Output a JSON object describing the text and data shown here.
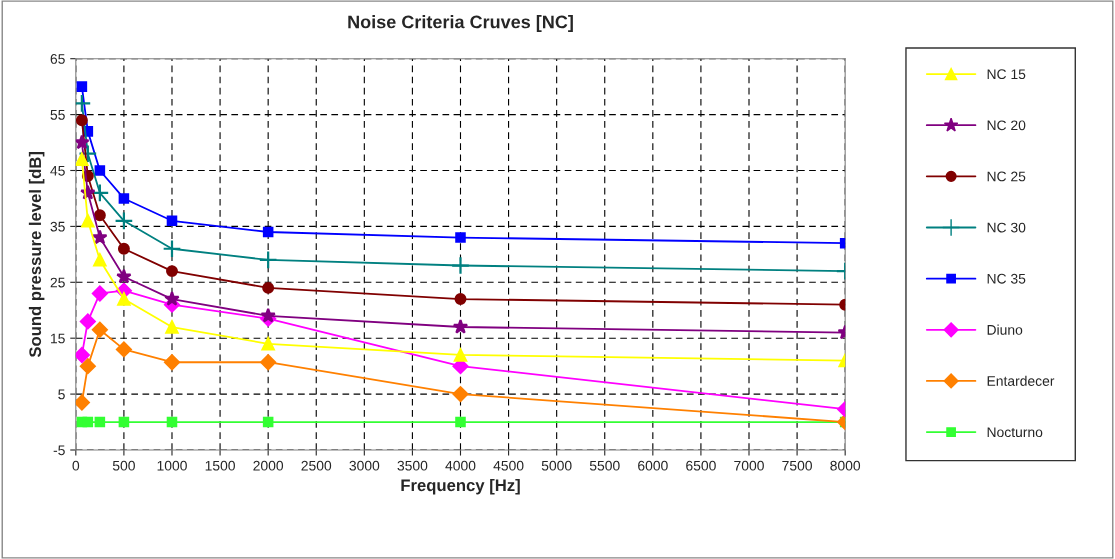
{
  "chart_data": {
    "type": "line",
    "title": "Noise Criteria Cruves [NC]",
    "xlabel": "Frequency [Hz]",
    "ylabel": "Sound pressure level [dB]",
    "x": [
      63,
      125,
      250,
      500,
      1000,
      2000,
      4000,
      8000
    ],
    "xlim": [
      0,
      8000
    ],
    "xticks": [
      0,
      500,
      1000,
      1500,
      2000,
      2500,
      3000,
      3500,
      4000,
      4500,
      5000,
      5500,
      6000,
      6500,
      7000,
      7500,
      8000
    ],
    "ylim": [
      -5,
      65
    ],
    "yticks": [
      -5,
      5,
      15,
      25,
      35,
      45,
      55,
      65
    ],
    "grid": true,
    "legend": "right",
    "series": [
      {
        "name": "NC 15",
        "color": "#ffff00",
        "marker": "triangle",
        "values": [
          47,
          36,
          29,
          22,
          17,
          14,
          12,
          11
        ]
      },
      {
        "name": "NC 20",
        "color": "#800080",
        "marker": "star",
        "values": [
          50,
          41,
          33,
          26,
          22,
          19,
          17,
          16
        ]
      },
      {
        "name": "NC 25",
        "color": "#800000",
        "marker": "circle",
        "values": [
          54,
          44,
          37,
          31,
          27,
          24,
          22,
          21
        ]
      },
      {
        "name": "NC 30",
        "color": "#008080",
        "marker": "cross",
        "values": [
          57,
          48,
          41,
          36,
          31,
          29,
          28,
          27
        ]
      },
      {
        "name": "NC 35",
        "color": "#0000ff",
        "marker": "square",
        "values": [
          60,
          52,
          45,
          40,
          36,
          34,
          33,
          32
        ]
      },
      {
        "name": "Diuno",
        "color": "#ff00ff",
        "marker": "diamond",
        "values": [
          12,
          18,
          23,
          23.5,
          21,
          18.5,
          10,
          2.3
        ]
      },
      {
        "name": "Entardecer",
        "color": "#ff8000",
        "marker": "diamond",
        "values": [
          3.5,
          10,
          16.5,
          13,
          10.7,
          10.7,
          5,
          0
        ]
      },
      {
        "name": "Nocturno",
        "color": "#33ff33",
        "marker": "square",
        "values": [
          0,
          0,
          0,
          0,
          0,
          0,
          0,
          0
        ]
      }
    ]
  }
}
